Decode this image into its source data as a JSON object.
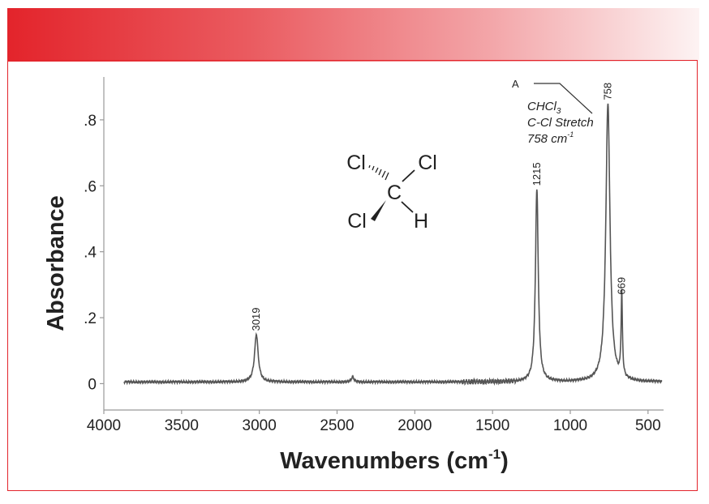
{
  "banner": {
    "gradient_start": "#e3242b",
    "gradient_end": "#fdf3f3"
  },
  "frame": {
    "border_color": "#e3242b"
  },
  "chart_data": {
    "type": "line",
    "xlabel": "Wavenumbers (cm",
    "xlabel_sup": "-1",
    "xlabel_close": ")",
    "ylabel": "Absorbance",
    "xlim": [
      4000,
      400
    ],
    "ylim": [
      -0.08,
      0.93
    ],
    "x_reversed": true,
    "x_ticks": [
      4000,
      3500,
      3000,
      2500,
      2000,
      1500,
      1000,
      500
    ],
    "x_tick_labels": [
      "4000",
      "3500",
      "3000",
      "2500",
      "2000",
      "1500",
      "1000",
      "500"
    ],
    "y_ticks": [
      0,
      0.2,
      0.4,
      0.6,
      0.8
    ],
    "y_tick_labels": [
      "0",
      ".2",
      ".4",
      ".6",
      ".8"
    ],
    "grid": false,
    "line_color": "#555555",
    "series": [
      {
        "baseline": 0.005,
        "peaks": [
          {
            "x": 3019,
            "y": 0.15,
            "width": 14
          },
          {
            "x": 2400,
            "y": 0.02,
            "width": 10
          },
          {
            "x": 1215,
            "y": 0.59,
            "width": 11
          },
          {
            "x": 758,
            "y": 0.85,
            "width": 16
          },
          {
            "x": 669,
            "y": 0.26,
            "width": 5
          }
        ]
      }
    ],
    "peak_labels": [
      {
        "x": 3019,
        "y": 0.15,
        "text": "3019"
      },
      {
        "x": 1215,
        "y": 0.59,
        "text": "1215"
      },
      {
        "x": 758,
        "y": 0.85,
        "text": "758"
      },
      {
        "x": 669,
        "y": 0.26,
        "text": "669"
      }
    ],
    "annotation": {
      "marker": "A",
      "line1": "CHCl",
      "line1_sub": "3",
      "line2": "C-Cl Stretch",
      "line3": "758 cm",
      "line3_sup": "-1"
    },
    "molecule": {
      "center": "C",
      "top_left": "Cl",
      "top_right": "Cl",
      "bottom_left": "Cl",
      "bottom_right": "H"
    }
  }
}
